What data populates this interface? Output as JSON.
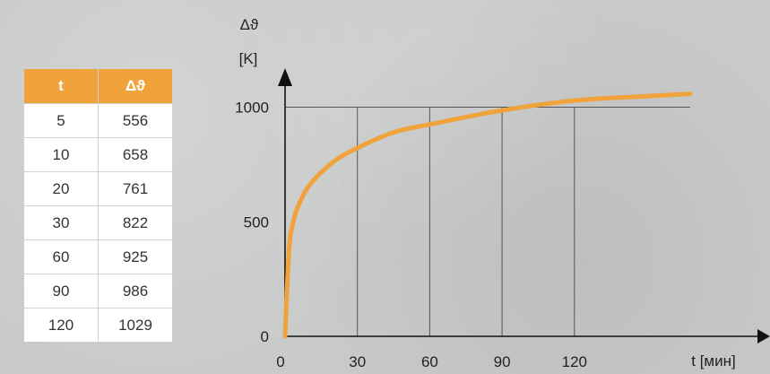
{
  "table": {
    "headers": [
      "t",
      "Δϑ"
    ],
    "rows": [
      [
        "5",
        "556"
      ],
      [
        "10",
        "658"
      ],
      [
        "20",
        "761"
      ],
      [
        "30",
        "822"
      ],
      [
        "60",
        "925"
      ],
      [
        "90",
        "986"
      ],
      [
        "120",
        "1029"
      ]
    ]
  },
  "colors": {
    "accent": "#f0a23b",
    "curve": "#f0a23b",
    "axis": "#111111",
    "grid": "#555555",
    "background": "#c9cbcb"
  },
  "chart_data": {
    "type": "line",
    "title": "",
    "ylabel": "Δϑ",
    "ylabel_unit": "[K]",
    "xlabel": "t [мин]",
    "xlim": [
      0,
      168
    ],
    "ylim": [
      0,
      1040
    ],
    "x_ticks": [
      0,
      30,
      60,
      90,
      120
    ],
    "y_ticks": [
      0,
      500,
      1000
    ],
    "grid": "vertical lines at x ticks, horizontal line at 1000",
    "series": [
      {
        "x": [
          0,
          1,
          2,
          3,
          5,
          10,
          20,
          30,
          45,
          60,
          90,
          120,
          150,
          168
        ],
        "values": [
          0,
          250,
          420,
          480,
          556,
          658,
          761,
          822,
          890,
          925,
          986,
          1029,
          1048,
          1058
        ]
      }
    ]
  }
}
